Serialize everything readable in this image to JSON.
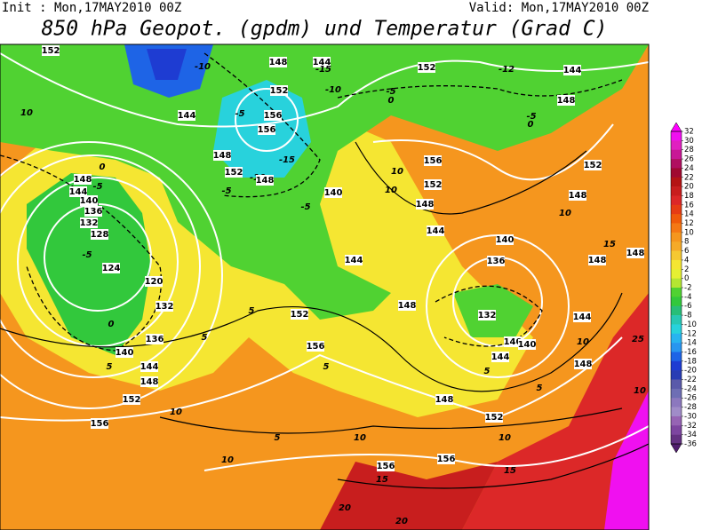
{
  "header": {
    "init": "Init : Mon,17MAY2010 00Z",
    "valid": "Valid: Mon,17MAY2010 00Z",
    "title": "850 hPa Geopot. (gpdm) und Temperatur (Grad C)"
  },
  "colorbar": {
    "levels": [
      32,
      30,
      28,
      26,
      24,
      22,
      20,
      18,
      16,
      14,
      12,
      10,
      8,
      6,
      4,
      2,
      0,
      -2,
      -4,
      -6,
      -8,
      -10,
      -12,
      -14,
      -16,
      -18,
      -20,
      -22,
      -24,
      -26,
      -28,
      -30,
      -32,
      -34,
      -36
    ],
    "band_colors": [
      "#f010f0",
      "#e020c0",
      "#c81896",
      "#b01060",
      "#a00a30",
      "#b41414",
      "#c81e1e",
      "#dc2828",
      "#e63c14",
      "#f05a0a",
      "#f57814",
      "#f5961e",
      "#f5aa28",
      "#f5c832",
      "#f5e632",
      "#e6f032",
      "#b4e632",
      "#50d232",
      "#32c83c",
      "#28be78",
      "#28c8b4",
      "#28d2dc",
      "#28b4f0",
      "#2896f0",
      "#1e64e6",
      "#1e3cd2",
      "#283cb4",
      "#5a5aaa",
      "#6e6eb4",
      "#8c78be",
      "#a08cc8",
      "#9664b4",
      "#7d46a0",
      "#643282"
    ],
    "extend_colors": [
      "#ff00ff",
      "#501e6e"
    ]
  },
  "contour_labels": [
    "152",
    "-10",
    "148",
    "144",
    "-15",
    "152",
    "-12",
    "144",
    "10",
    "144",
    "-5",
    "156",
    "156",
    "152",
    "-10",
    "-5",
    "0",
    "148",
    "-5",
    "0",
    "148",
    "-15",
    "152",
    "-10",
    "148",
    "0",
    "148",
    "-5",
    "144",
    "140",
    "136",
    "132",
    "128",
    "-5",
    "124",
    "120",
    "132",
    "136",
    "140",
    "144",
    "148",
    "152",
    "156",
    "140",
    "-5",
    "-5",
    "156",
    "10",
    "10",
    "152",
    "148",
    "144",
    "140",
    "136",
    "132",
    "140",
    "140",
    "144",
    "148",
    "148",
    "152",
    "152",
    "148",
    "10",
    "15",
    "148",
    "148",
    "144",
    "10",
    "25",
    "10",
    "144",
    "152",
    "156",
    "148",
    "0",
    "5",
    "5",
    "5",
    "5",
    "10",
    "5",
    "10",
    "10",
    "156",
    "15",
    "156",
    "10",
    "15",
    "20",
    "20",
    "5",
    "5"
  ]
}
